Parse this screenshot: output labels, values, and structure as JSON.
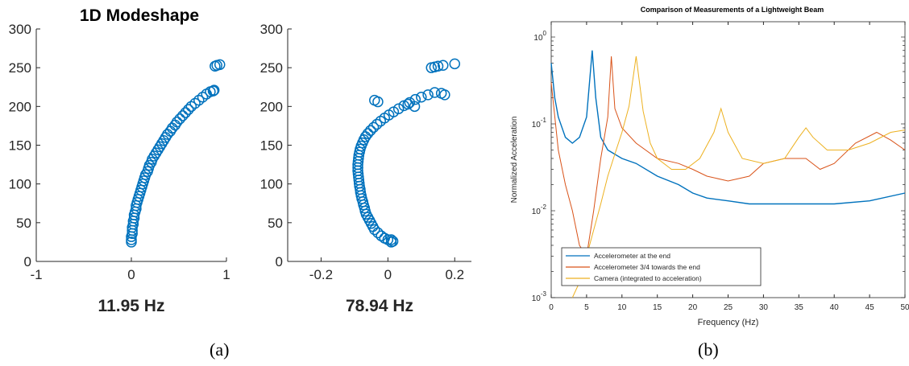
{
  "captions": {
    "a": "(a)",
    "b": "(b)"
  },
  "chart_data": [
    {
      "type": "scatter",
      "title": "1D Modeshape",
      "xlabel": "11.95 Hz",
      "ylabel": "",
      "xlim": [
        -1,
        1
      ],
      "ylim": [
        0,
        300
      ],
      "xticks": [
        "-1",
        "0",
        "1"
      ],
      "yticks": [
        "0",
        "50",
        "100",
        "150",
        "200",
        "250",
        "300"
      ],
      "color": "#0072BD",
      "points": [
        [
          0.0,
          25
        ],
        [
          0.0,
          28
        ],
        [
          0.0,
          32
        ],
        [
          0.01,
          36
        ],
        [
          0.01,
          40
        ],
        [
          0.01,
          44
        ],
        [
          0.02,
          48
        ],
        [
          0.02,
          52
        ],
        [
          0.03,
          56
        ],
        [
          0.03,
          60
        ],
        [
          0.04,
          64
        ],
        [
          0.05,
          68
        ],
        [
          0.05,
          72
        ],
        [
          0.06,
          76
        ],
        [
          0.07,
          80
        ],
        [
          0.08,
          84
        ],
        [
          0.09,
          88
        ],
        [
          0.1,
          92
        ],
        [
          0.11,
          96
        ],
        [
          0.12,
          100
        ],
        [
          0.13,
          104
        ],
        [
          0.14,
          108
        ],
        [
          0.15,
          112
        ],
        [
          0.17,
          116
        ],
        [
          0.18,
          120
        ],
        [
          0.19,
          124
        ],
        [
          0.21,
          128
        ],
        [
          0.22,
          132
        ],
        [
          0.24,
          136
        ],
        [
          0.26,
          140
        ],
        [
          0.28,
          144
        ],
        [
          0.3,
          148
        ],
        [
          0.32,
          152
        ],
        [
          0.34,
          156
        ],
        [
          0.36,
          160
        ],
        [
          0.38,
          164
        ],
        [
          0.41,
          168
        ],
        [
          0.43,
          172
        ],
        [
          0.46,
          176
        ],
        [
          0.48,
          180
        ],
        [
          0.51,
          184
        ],
        [
          0.54,
          188
        ],
        [
          0.57,
          192
        ],
        [
          0.6,
          196
        ],
        [
          0.63,
          200
        ],
        [
          0.67,
          204
        ],
        [
          0.71,
          208
        ],
        [
          0.75,
          212
        ],
        [
          0.79,
          216
        ],
        [
          0.83,
          219
        ],
        [
          0.86,
          220
        ],
        [
          0.87,
          221
        ],
        [
          0.9,
          253
        ],
        [
          0.93,
          254
        ],
        [
          0.88,
          252
        ]
      ]
    },
    {
      "type": "scatter",
      "title": "",
      "xlabel": "78.94 Hz",
      "ylabel": "",
      "xlim": [
        -0.3,
        0.25
      ],
      "ylim": [
        0,
        300
      ],
      "xticks": [
        "-0.2",
        "0",
        "0.2"
      ],
      "yticks": [
        "0",
        "50",
        "100",
        "150",
        "200",
        "250",
        "300"
      ],
      "color": "#0072BD",
      "points": [
        [
          0.01,
          25
        ],
        [
          0.0,
          28
        ],
        [
          -0.01,
          30
        ],
        [
          -0.02,
          33
        ],
        [
          -0.03,
          37
        ],
        [
          -0.04,
          41
        ],
        [
          -0.045,
          45
        ],
        [
          -0.05,
          49
        ],
        [
          -0.055,
          53
        ],
        [
          -0.06,
          57
        ],
        [
          -0.065,
          61
        ],
        [
          -0.068,
          65
        ],
        [
          -0.07,
          69
        ],
        [
          -0.073,
          73
        ],
        [
          -0.075,
          77
        ],
        [
          -0.078,
          81
        ],
        [
          -0.08,
          85
        ],
        [
          -0.082,
          89
        ],
        [
          -0.083,
          93
        ],
        [
          -0.085,
          97
        ],
        [
          -0.086,
          101
        ],
        [
          -0.087,
          105
        ],
        [
          -0.088,
          109
        ],
        [
          -0.089,
          113
        ],
        [
          -0.09,
          117
        ],
        [
          -0.09,
          121
        ],
        [
          -0.09,
          125
        ],
        [
          -0.089,
          129
        ],
        [
          -0.088,
          133
        ],
        [
          -0.087,
          137
        ],
        [
          -0.085,
          141
        ],
        [
          -0.083,
          145
        ],
        [
          -0.08,
          149
        ],
        [
          -0.076,
          153
        ],
        [
          -0.072,
          157
        ],
        [
          -0.067,
          161
        ],
        [
          -0.06,
          165
        ],
        [
          -0.052,
          169
        ],
        [
          -0.043,
          173
        ],
        [
          -0.033,
          177
        ],
        [
          -0.022,
          181
        ],
        [
          -0.01,
          185
        ],
        [
          0.003,
          189
        ],
        [
          0.017,
          193
        ],
        [
          0.032,
          197
        ],
        [
          0.048,
          201
        ],
        [
          0.065,
          205
        ],
        [
          0.082,
          209
        ],
        [
          0.1,
          212
        ],
        [
          0.12,
          215
        ],
        [
          0.14,
          218
        ],
        [
          0.16,
          217
        ],
        [
          0.17,
          215
        ],
        [
          -0.04,
          208
        ],
        [
          -0.03,
          206
        ],
        [
          0.14,
          251
        ],
        [
          0.15,
          252
        ],
        [
          0.165,
          253
        ],
        [
          0.2,
          255
        ],
        [
          0.13,
          250
        ],
        [
          0.01,
          28
        ],
        [
          0.015,
          26
        ],
        [
          0.08,
          200
        ],
        [
          0.06,
          203
        ]
      ]
    },
    {
      "type": "line",
      "title": "Comparison of Measurements of a Lightweight Beam",
      "xlabel": "Frequency (Hz)",
      "ylabel": "Normalized Acceleration",
      "xlim": [
        0,
        50
      ],
      "ylim": [
        0.001,
        1.5
      ],
      "yscale": "log",
      "xticks": [
        "0",
        "5",
        "10",
        "15",
        "20",
        "25",
        "30",
        "35",
        "40",
        "45",
        "50"
      ],
      "yticks": [
        {
          "base": "10",
          "exp": "-3",
          "value": 0.001
        },
        {
          "base": "10",
          "exp": "-2",
          "value": 0.01
        },
        {
          "base": "10",
          "exp": "-1",
          "value": 0.1
        },
        {
          "base": "10",
          "exp": "0",
          "value": 1
        }
      ],
      "legend_position": "lower-left",
      "series": [
        {
          "name": "Accelerometer at the end",
          "color": "#0072BD",
          "points": [
            [
              0,
              0.5
            ],
            [
              0.5,
              0.2
            ],
            [
              1,
              0.12
            ],
            [
              2,
              0.07
            ],
            [
              3,
              0.06
            ],
            [
              4,
              0.07
            ],
            [
              5,
              0.12
            ],
            [
              5.8,
              0.7
            ],
            [
              6.3,
              0.2
            ],
            [
              7,
              0.07
            ],
            [
              8,
              0.05
            ],
            [
              10,
              0.04
            ],
            [
              12,
              0.035
            ],
            [
              15,
              0.025
            ],
            [
              18,
              0.02
            ],
            [
              20,
              0.016
            ],
            [
              22,
              0.014
            ],
            [
              25,
              0.013
            ],
            [
              28,
              0.012
            ],
            [
              30,
              0.012
            ],
            [
              35,
              0.012
            ],
            [
              40,
              0.012
            ],
            [
              45,
              0.013
            ],
            [
              50,
              0.016
            ]
          ]
        },
        {
          "name": "Accelerometer 3/4 towards the end",
          "color": "#D95319",
          "points": [
            [
              0,
              0.3
            ],
            [
              1,
              0.05
            ],
            [
              2,
              0.02
            ],
            [
              3,
              0.01
            ],
            [
              4,
              0.004
            ],
            [
              5,
              0.003
            ],
            [
              6,
              0.01
            ],
            [
              7,
              0.04
            ],
            [
              8,
              0.12
            ],
            [
              8.5,
              0.6
            ],
            [
              9,
              0.15
            ],
            [
              10,
              0.09
            ],
            [
              12,
              0.06
            ],
            [
              15,
              0.04
            ],
            [
              18,
              0.035
            ],
            [
              20,
              0.03
            ],
            [
              22,
              0.025
            ],
            [
              25,
              0.022
            ],
            [
              28,
              0.025
            ],
            [
              30,
              0.035
            ],
            [
              33,
              0.04
            ],
            [
              36,
              0.04
            ],
            [
              38,
              0.03
            ],
            [
              40,
              0.035
            ],
            [
              43,
              0.06
            ],
            [
              46,
              0.08
            ],
            [
              48,
              0.065
            ],
            [
              50,
              0.05
            ]
          ]
        },
        {
          "name": "Camera (integrated to acceleration)",
          "color": "#EDB120",
          "points": [
            [
              3,
              0.001
            ],
            [
              4,
              0.0015
            ],
            [
              5,
              0.003
            ],
            [
              6,
              0.006
            ],
            [
              7,
              0.012
            ],
            [
              8,
              0.025
            ],
            [
              9,
              0.045
            ],
            [
              10,
              0.08
            ],
            [
              11,
              0.16
            ],
            [
              12,
              0.6
            ],
            [
              13,
              0.14
            ],
            [
              14,
              0.06
            ],
            [
              15,
              0.04
            ],
            [
              17,
              0.03
            ],
            [
              19,
              0.03
            ],
            [
              21,
              0.04
            ],
            [
              23,
              0.08
            ],
            [
              24,
              0.15
            ],
            [
              25,
              0.08
            ],
            [
              27,
              0.04
            ],
            [
              30,
              0.035
            ],
            [
              33,
              0.04
            ],
            [
              35,
              0.07
            ],
            [
              36,
              0.09
            ],
            [
              37,
              0.07
            ],
            [
              39,
              0.05
            ],
            [
              42,
              0.05
            ],
            [
              45,
              0.06
            ],
            [
              48,
              0.08
            ],
            [
              50,
              0.085
            ]
          ]
        }
      ]
    }
  ]
}
